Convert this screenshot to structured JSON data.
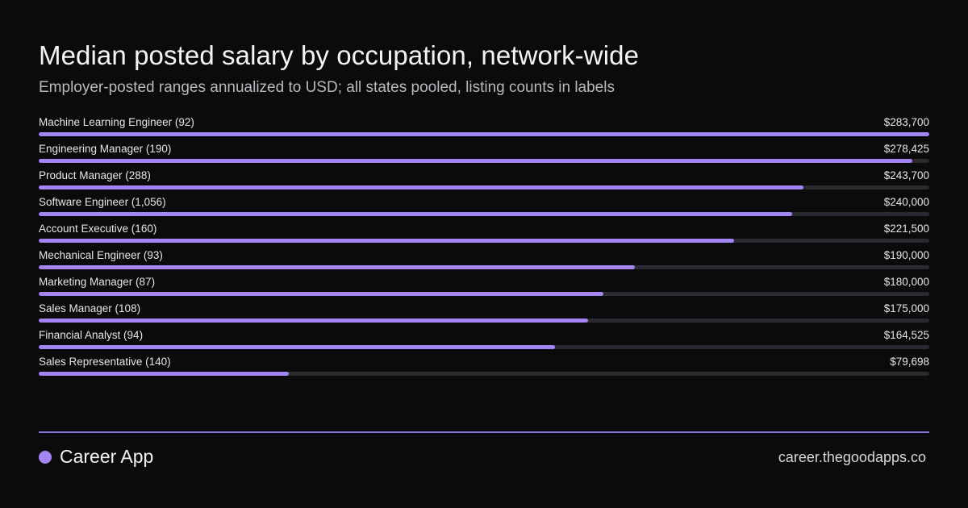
{
  "header": {
    "title": "Median posted salary by occupation, network-wide",
    "subtitle": "Employer-posted ranges annualized to USD; all states pooled, listing counts in labels"
  },
  "chart_data": {
    "type": "bar",
    "orientation": "horizontal",
    "title": "Median posted salary by occupation, network-wide",
    "subtitle": "Employer-posted ranges annualized to USD; all states pooled, listing counts in labels",
    "categories": [
      "Machine Learning Engineer (92)",
      "Engineering Manager (190)",
      "Product Manager (288)",
      "Software Engineer (1,056)",
      "Account Executive (160)",
      "Mechanical Engineer (93)",
      "Marketing Manager (87)",
      "Sales Manager (108)",
      "Financial Analyst (94)",
      "Sales Representative (140)"
    ],
    "values": [
      283700,
      278425,
      243700,
      240000,
      221500,
      190000,
      180000,
      175000,
      164525,
      79698
    ],
    "value_labels": [
      "$283,700",
      "$278,425",
      "$243,700",
      "$240,000",
      "$221,500",
      "$190,000",
      "$180,000",
      "$175,000",
      "$164,525",
      "$79,698"
    ],
    "xlim": [
      0,
      283700
    ],
    "grid": false,
    "bar_color": "#a585f4",
    "track_color": "#2a2a30"
  },
  "footer": {
    "brand": "Career App",
    "site": "career.thegoodapps.co"
  },
  "colors": {
    "background": "#0b0b0c",
    "accent": "#a585f4",
    "divider": "#8c72e0"
  }
}
